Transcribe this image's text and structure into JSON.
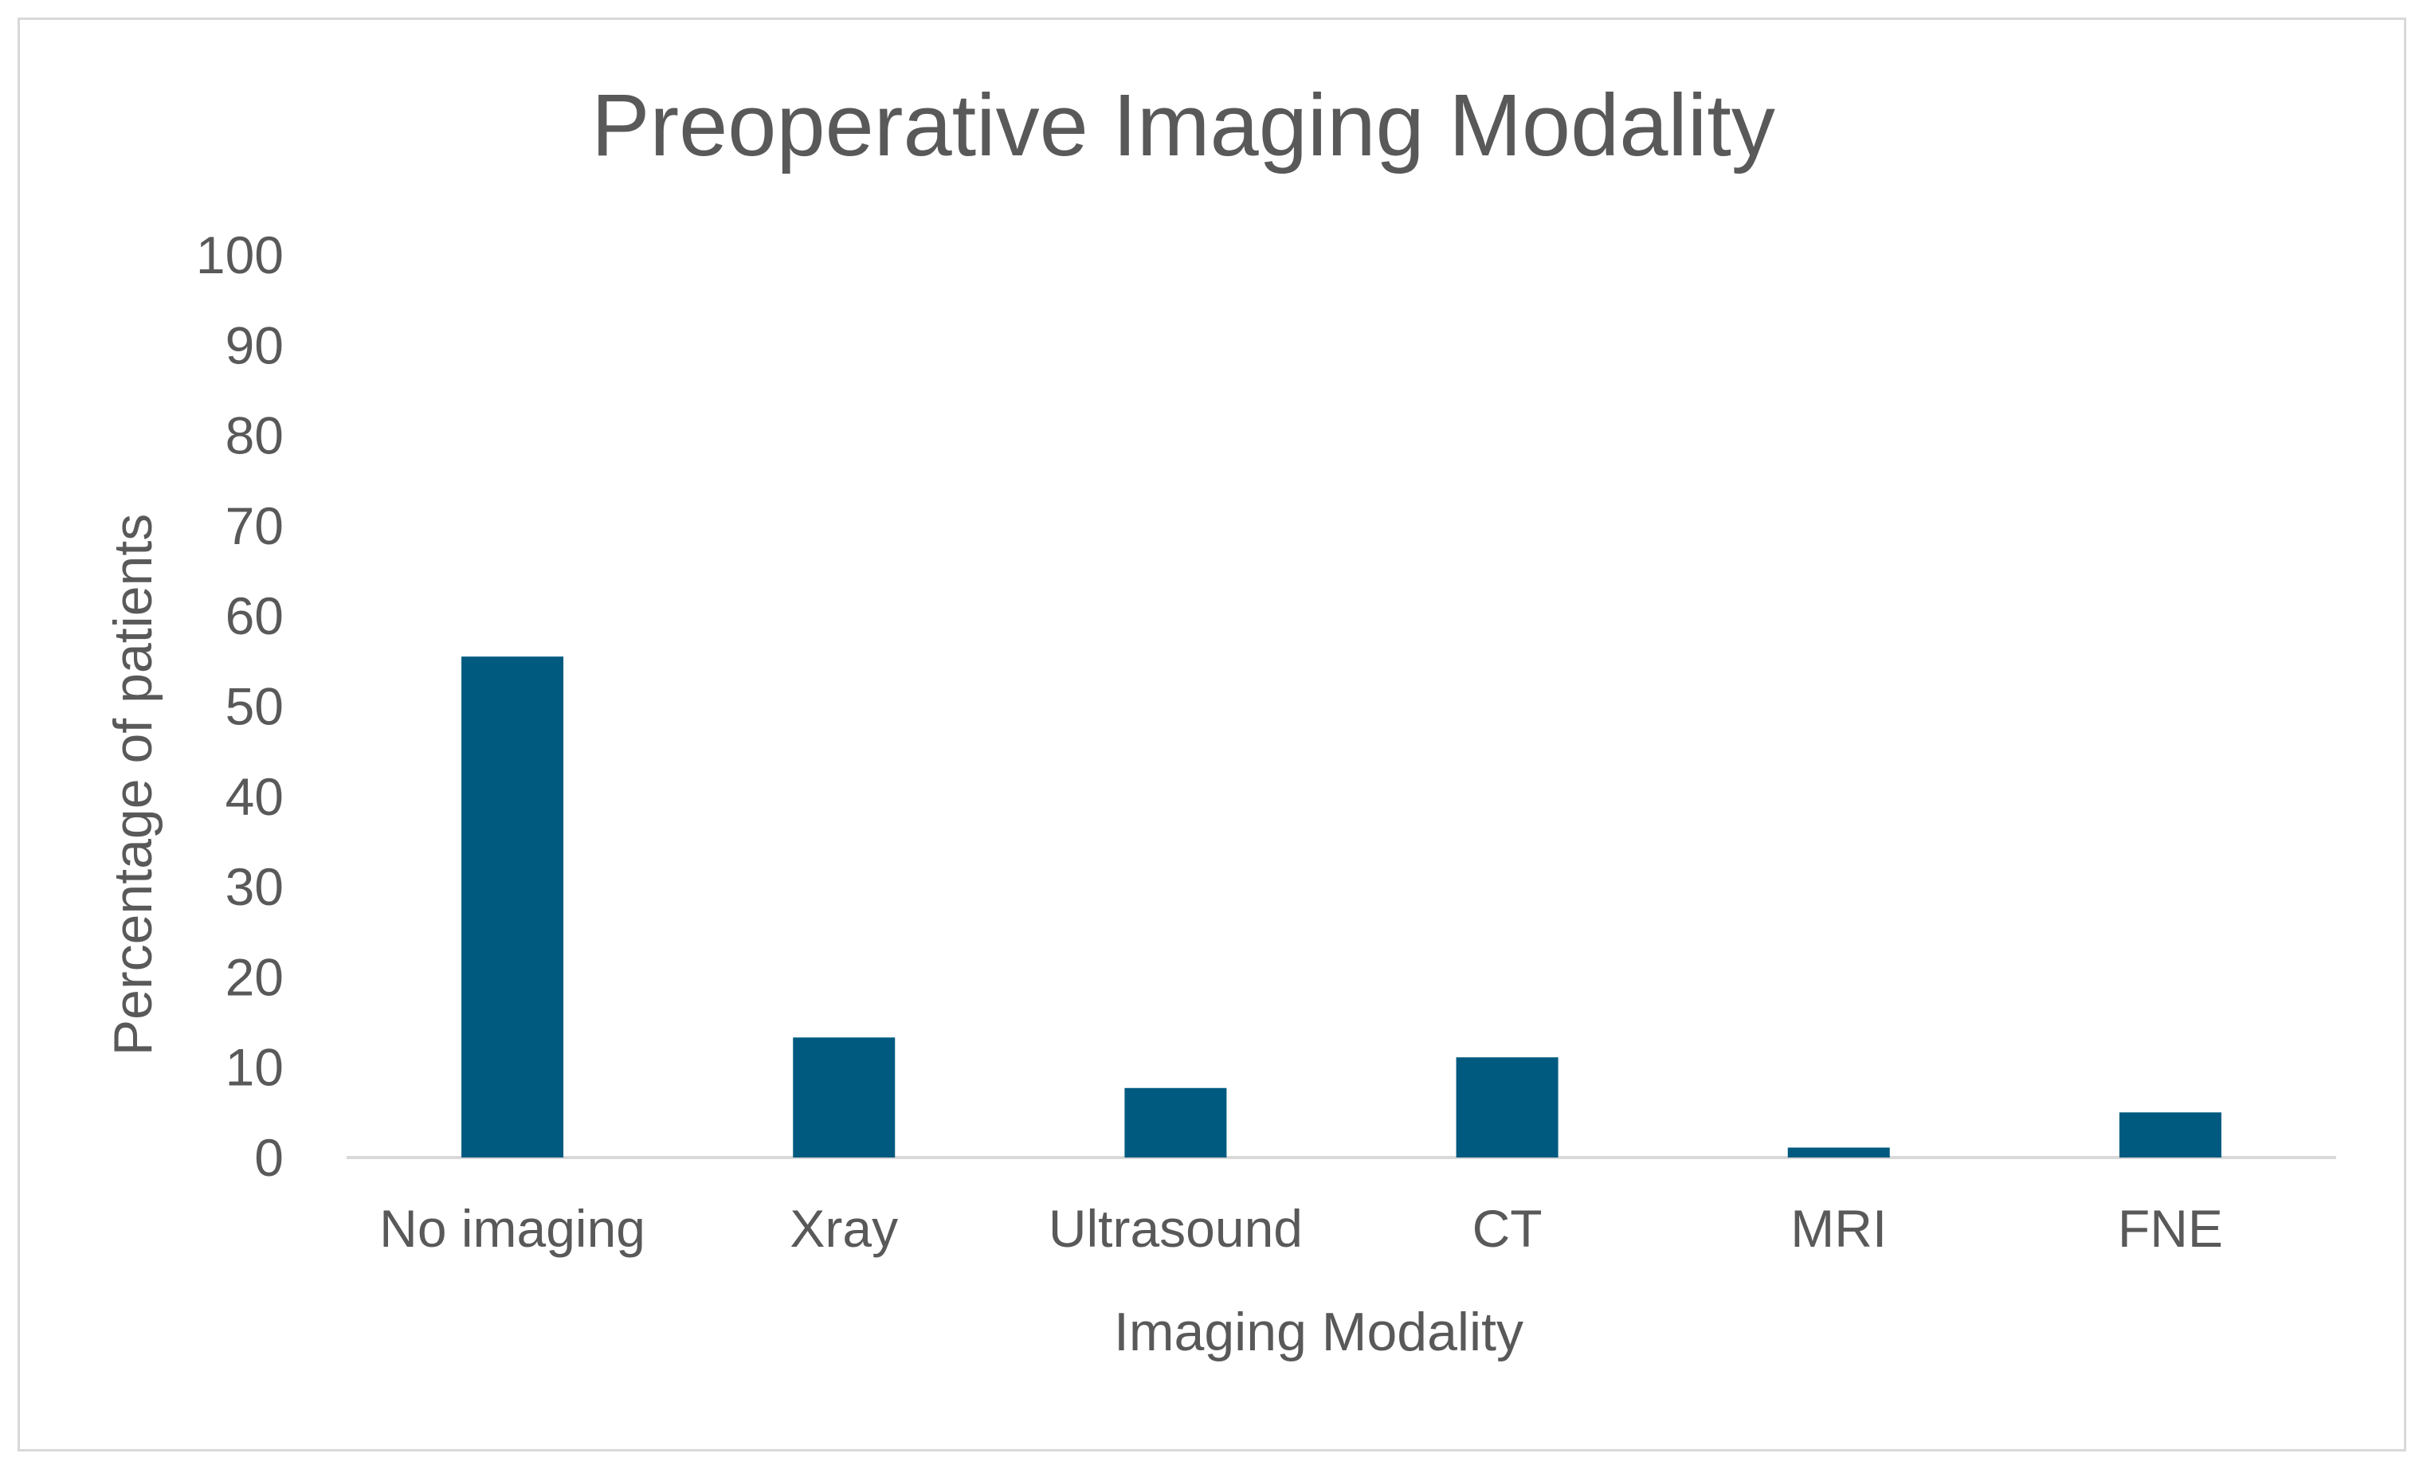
{
  "chart_data": {
    "type": "bar",
    "title": "Preoperative Imaging Modality",
    "xlabel": "Imaging Modality",
    "ylabel": "Percentage of patients",
    "categories": [
      "No imaging",
      "Xray",
      "Ultrasound",
      "CT",
      "MRI",
      "FNE"
    ],
    "values": [
      55.5,
      13.3,
      7.7,
      11.1,
      1.1,
      5.0
    ],
    "ylim": [
      0,
      100
    ],
    "yticks": [
      "0",
      "10",
      "20",
      "30",
      "40",
      "50",
      "60",
      "70",
      "80",
      "90",
      "100"
    ],
    "grid": false,
    "legend": "none",
    "bar_color": "#005a80",
    "axis_color": "#d9d9d9",
    "text_color": "#595959"
  }
}
